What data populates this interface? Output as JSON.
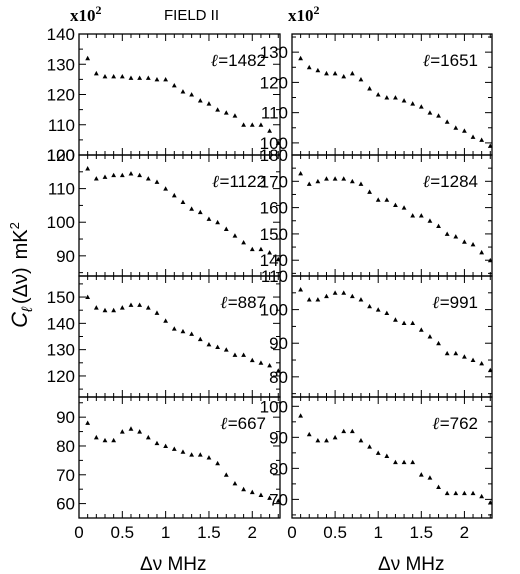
{
  "figure": {
    "title": "FIELD II",
    "scale_left": "x10",
    "scale_right": "x10",
    "scale_exponent": "2",
    "ylabel_main": "C",
    "ylabel_sub": "ℓ",
    "ylabel_arg": "(Δν)",
    "ylabel_unit": "mK",
    "ylabel_unit_exp": "2",
    "xlabel": "Δν  MHz"
  },
  "chart_data": [
    {
      "type": "scatter",
      "ell_label": "ℓ=1482",
      "column": "left",
      "row": 0,
      "xlim": [
        0,
        2.32
      ],
      "ylim": [
        100,
        140
      ],
      "yticks": [
        100,
        110,
        120,
        130,
        140
      ],
      "xticks": [
        0,
        0.5,
        1,
        1.5,
        2
      ],
      "xticklabels_shown": false,
      "x": [
        0.1,
        0.2,
        0.3,
        0.4,
        0.5,
        0.6,
        0.7,
        0.8,
        0.9,
        1.0,
        1.1,
        1.2,
        1.3,
        1.4,
        1.5,
        1.6,
        1.7,
        1.8,
        1.9,
        2.0,
        2.1,
        2.2,
        2.3
      ],
      "y": [
        132,
        127,
        126,
        126,
        126,
        125.5,
        125.5,
        125.5,
        125,
        125,
        123,
        121,
        120,
        118,
        117,
        115,
        114,
        113,
        110,
        110,
        110,
        108,
        104
      ]
    },
    {
      "type": "scatter",
      "ell_label": "ℓ=1122",
      "column": "left",
      "row": 1,
      "xlim": [
        0,
        2.32
      ],
      "ylim": [
        84,
        120
      ],
      "yticks": [
        90,
        100,
        110,
        120
      ],
      "xticks": [
        0,
        0.5,
        1,
        1.5,
        2
      ],
      "xticklabels_shown": false,
      "x": [
        0.1,
        0.2,
        0.3,
        0.4,
        0.5,
        0.6,
        0.7,
        0.8,
        0.9,
        1.0,
        1.1,
        1.2,
        1.3,
        1.4,
        1.5,
        1.6,
        1.7,
        1.8,
        1.9,
        2.0,
        2.1,
        2.2,
        2.3
      ],
      "y": [
        116,
        113,
        113.5,
        114,
        114,
        114.5,
        114,
        113,
        112,
        110,
        108,
        106,
        104,
        103,
        101,
        100,
        98,
        96,
        94,
        92,
        92,
        91,
        89
      ]
    },
    {
      "type": "scatter",
      "ell_label": "ℓ=887",
      "column": "left",
      "row": 2,
      "xlim": [
        0,
        2.32
      ],
      "ylim": [
        112,
        158
      ],
      "yticks": [
        120,
        130,
        140,
        150
      ],
      "xticks": [
        0,
        0.5,
        1,
        1.5,
        2
      ],
      "xticklabels_shown": false,
      "x": [
        0.1,
        0.2,
        0.3,
        0.4,
        0.5,
        0.6,
        0.7,
        0.8,
        0.9,
        1.0,
        1.1,
        1.2,
        1.3,
        1.4,
        1.5,
        1.6,
        1.7,
        1.8,
        1.9,
        2.0,
        2.1,
        2.2,
        2.3
      ],
      "y": [
        150,
        146,
        145,
        145,
        146,
        147,
        147,
        146,
        144,
        141,
        138,
        137,
        136,
        134,
        132,
        131,
        130,
        128,
        128,
        126,
        125,
        124,
        122
      ]
    },
    {
      "type": "scatter",
      "ell_label": "ℓ=667",
      "column": "left",
      "row": 3,
      "xlim": [
        0,
        2.32
      ],
      "ylim": [
        55,
        97
      ],
      "yticks": [
        60,
        70,
        80,
        90
      ],
      "xticks": [
        0,
        0.5,
        1,
        1.5,
        2
      ],
      "xticklabels": [
        "0",
        "0.5",
        "1",
        "1.5",
        "2"
      ],
      "x": [
        0.1,
        0.2,
        0.3,
        0.4,
        0.5,
        0.6,
        0.7,
        0.8,
        0.9,
        1.0,
        1.1,
        1.2,
        1.3,
        1.4,
        1.5,
        1.6,
        1.7,
        1.8,
        1.9,
        2.0,
        2.1,
        2.2,
        2.3
      ],
      "y": [
        88,
        83,
        82,
        82,
        85,
        86,
        85,
        83,
        81,
        80,
        79,
        78,
        77,
        77,
        76,
        74,
        70,
        67,
        65,
        64,
        63,
        62,
        61
      ]
    },
    {
      "type": "scatter",
      "ell_label": "ℓ=1651",
      "column": "right",
      "row": 0,
      "xlim": [
        0,
        2.32
      ],
      "ylim": [
        96,
        136
      ],
      "yticks": [
        100,
        110,
        120,
        130
      ],
      "xticks": [
        0,
        0.5,
        1,
        1.5,
        2
      ],
      "xticklabels_shown": false,
      "x": [
        0.1,
        0.2,
        0.3,
        0.4,
        0.5,
        0.6,
        0.7,
        0.8,
        0.9,
        1.0,
        1.1,
        1.2,
        1.3,
        1.4,
        1.5,
        1.6,
        1.7,
        1.8,
        1.9,
        2.0,
        2.1,
        2.2,
        2.3
      ],
      "y": [
        128,
        125,
        124,
        123,
        123,
        122,
        123,
        121,
        118,
        116,
        115,
        115,
        114,
        113,
        112,
        110,
        109,
        107,
        105,
        104,
        102,
        101,
        99
      ]
    },
    {
      "type": "scatter",
      "ell_label": "ℓ=1284",
      "column": "right",
      "row": 1,
      "xlim": [
        0,
        2.32
      ],
      "ylim": [
        134,
        180
      ],
      "yticks": [
        140,
        150,
        160,
        170,
        180
      ],
      "xticks": [
        0,
        0.5,
        1,
        1.5,
        2
      ],
      "xticklabels_shown": false,
      "x": [
        0.1,
        0.2,
        0.3,
        0.4,
        0.5,
        0.6,
        0.7,
        0.8,
        0.9,
        1.0,
        1.1,
        1.2,
        1.3,
        1.4,
        1.5,
        1.6,
        1.7,
        1.8,
        1.9,
        2.0,
        2.1,
        2.2,
        2.3
      ],
      "y": [
        173,
        169,
        170,
        171,
        171,
        171,
        170,
        169,
        166,
        163,
        163,
        161,
        160,
        157,
        157,
        155,
        153,
        150,
        149,
        147,
        146,
        143,
        140
      ]
    },
    {
      "type": "scatter",
      "ell_label": "ℓ=991",
      "column": "right",
      "row": 2,
      "xlim": [
        0,
        2.32
      ],
      "ylim": [
        74,
        110
      ],
      "yticks": [
        80,
        90,
        100,
        110
      ],
      "xticks": [
        0,
        0.5,
        1,
        1.5,
        2
      ],
      "xticklabels_shown": false,
      "x": [
        0.1,
        0.2,
        0.3,
        0.4,
        0.5,
        0.6,
        0.7,
        0.8,
        0.9,
        1.0,
        1.1,
        1.2,
        1.3,
        1.4,
        1.5,
        1.6,
        1.7,
        1.8,
        1.9,
        2.0,
        2.1,
        2.2,
        2.3
      ],
      "y": [
        106,
        103,
        103,
        104,
        105,
        105,
        104,
        103,
        101,
        100,
        99,
        97,
        96,
        96,
        94,
        92,
        90,
        87,
        87,
        86,
        85,
        84,
        82
      ]
    },
    {
      "type": "scatter",
      "ell_label": "ℓ=762",
      "column": "right",
      "row": 3,
      "xlim": [
        0,
        2.32
      ],
      "ylim": [
        64,
        103
      ],
      "yticks": [
        70,
        80,
        90,
        100
      ],
      "xticks": [
        0,
        0.5,
        1,
        1.5,
        2
      ],
      "xticklabels": [
        "0",
        "0.5",
        "1",
        "1.5",
        "2"
      ],
      "x": [
        0.1,
        0.2,
        0.3,
        0.4,
        0.5,
        0.6,
        0.7,
        0.8,
        0.9,
        1.0,
        1.1,
        1.2,
        1.3,
        1.4,
        1.5,
        1.6,
        1.7,
        1.8,
        1.9,
        2.0,
        2.1,
        2.2,
        2.3
      ],
      "y": [
        97,
        91,
        89,
        89,
        90,
        92,
        92,
        89,
        87,
        85,
        84,
        82,
        82,
        82,
        78,
        77,
        74,
        72,
        72,
        72,
        72,
        71,
        69
      ]
    }
  ]
}
